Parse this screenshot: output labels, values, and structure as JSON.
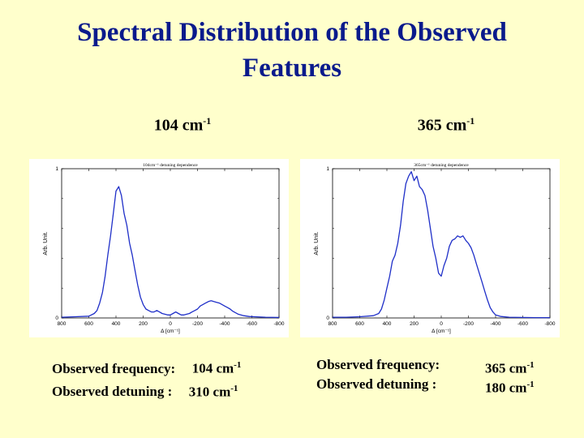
{
  "slide": {
    "title_line1": "Spectral Distribution of the Observed",
    "title_line2": "Features"
  },
  "panels": [
    {
      "heading": "104 cm",
      "heading_sup": "-1",
      "stats": {
        "frequency_label": "Observed frequency:",
        "frequency_value": "104 cm",
        "detuning_label": "Observed detuning :",
        "detuning_value": "310 cm",
        "unit_sup": "-1"
      }
    },
    {
      "heading": "365 cm",
      "heading_sup": "-1",
      "stats": {
        "frequency_label": "Observed frequency:",
        "frequency_value": "365 cm",
        "detuning_label": "Observed detuning :",
        "detuning_value": "180 cm",
        "unit_sup": "-1"
      }
    }
  ],
  "chart_data": [
    {
      "type": "line",
      "title": "104cm⁻¹ detuning dependence",
      "xlabel": "Δ [cm⁻¹]",
      "ylabel": "Arb. Unit.",
      "xlim": [
        800,
        -800
      ],
      "ylim": [
        0,
        1
      ],
      "x_ticks": [
        "800",
        "600",
        "400",
        "200",
        "0",
        "-200",
        "-400",
        "-600",
        "-800"
      ],
      "y_ticks": [
        "0",
        "1"
      ],
      "line_color": "#1f2fc8",
      "series": [
        {
          "x": [
            800,
            700,
            600,
            560,
            540,
            520,
            500,
            480,
            460,
            440,
            420,
            400,
            380,
            360,
            340,
            320,
            300,
            280,
            260,
            240,
            220,
            200,
            180,
            160,
            140,
            120,
            100,
            80,
            60,
            40,
            20,
            0,
            -20,
            -40,
            -60,
            -80,
            -100,
            -120,
            -140,
            -160,
            -180,
            -200,
            -220,
            -240,
            -260,
            -280,
            -300,
            -320,
            -340,
            -360,
            -380,
            -400,
            -420,
            -440,
            -460,
            -480,
            -500,
            -540,
            -580,
            -620,
            -700,
            -800
          ],
          "y": [
            0.005,
            0.008,
            0.012,
            0.03,
            0.05,
            0.1,
            0.17,
            0.28,
            0.42,
            0.55,
            0.7,
            0.85,
            0.88,
            0.82,
            0.7,
            0.62,
            0.5,
            0.42,
            0.32,
            0.22,
            0.14,
            0.09,
            0.06,
            0.05,
            0.04,
            0.04,
            0.05,
            0.04,
            0.03,
            0.025,
            0.02,
            0.02,
            0.03,
            0.04,
            0.03,
            0.02,
            0.02,
            0.025,
            0.03,
            0.04,
            0.05,
            0.06,
            0.08,
            0.09,
            0.1,
            0.11,
            0.115,
            0.11,
            0.105,
            0.1,
            0.09,
            0.08,
            0.07,
            0.06,
            0.045,
            0.035,
            0.025,
            0.015,
            0.01,
            0.008,
            0.005,
            0.003
          ]
        }
      ]
    },
    {
      "type": "line",
      "title": "365cm⁻¹ detuning dependence",
      "xlabel": "Δ [cm⁻¹]",
      "ylabel": "Arb. Unit.",
      "xlim": [
        800,
        -800
      ],
      "ylim": [
        0,
        1
      ],
      "x_ticks": [
        "800",
        "600",
        "400",
        "200",
        "0",
        "-200",
        "-400",
        "-600",
        "-800"
      ],
      "y_ticks": [
        "0",
        "1"
      ],
      "line_color": "#1f2fc8",
      "series": [
        {
          "x": [
            800,
            700,
            600,
            500,
            460,
            440,
            420,
            400,
            380,
            360,
            340,
            320,
            300,
            280,
            260,
            240,
            220,
            200,
            180,
            160,
            140,
            120,
            100,
            80,
            60,
            40,
            20,
            0,
            -20,
            -40,
            -60,
            -80,
            -100,
            -120,
            -140,
            -160,
            -180,
            -200,
            -220,
            -240,
            -260,
            -280,
            -300,
            -320,
            -340,
            -360,
            -380,
            -400,
            -440,
            -500,
            -600,
            -700,
            -800
          ],
          "y": [
            0.005,
            0.005,
            0.008,
            0.015,
            0.03,
            0.06,
            0.12,
            0.2,
            0.28,
            0.38,
            0.42,
            0.5,
            0.62,
            0.78,
            0.9,
            0.95,
            0.98,
            0.92,
            0.95,
            0.88,
            0.86,
            0.82,
            0.72,
            0.6,
            0.48,
            0.4,
            0.3,
            0.28,
            0.35,
            0.4,
            0.48,
            0.52,
            0.53,
            0.55,
            0.54,
            0.55,
            0.52,
            0.5,
            0.47,
            0.42,
            0.36,
            0.3,
            0.24,
            0.18,
            0.12,
            0.07,
            0.04,
            0.02,
            0.01,
            0.005,
            0.003,
            0.002,
            0.002
          ]
        }
      ]
    }
  ]
}
